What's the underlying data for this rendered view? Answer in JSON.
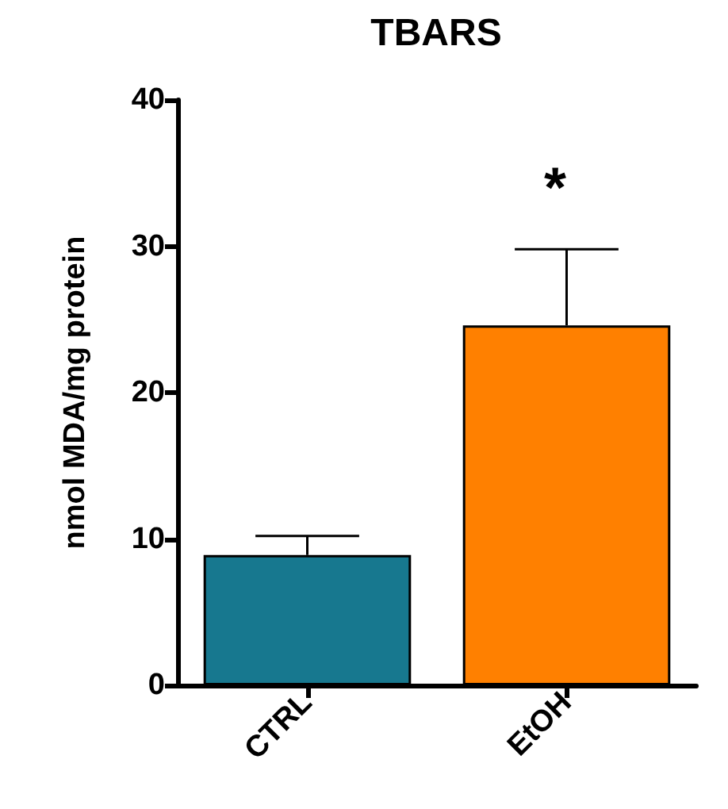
{
  "chart_data": {
    "type": "bar",
    "title": "TBARS",
    "ylabel": "nmol MDA/mg protein",
    "categories": [
      "CTRL",
      "EtOH"
    ],
    "values": [
      8.9,
      24.6
    ],
    "colors": [
      "#17788f",
      "#ff8000"
    ],
    "errors": [
      [
        8.9,
        10.2
      ],
      [
        24.6,
        29.8
      ]
    ],
    "ylim": [
      0,
      40
    ],
    "yticks": [
      0,
      10,
      20,
      30,
      40
    ],
    "grid": false,
    "annotations": [
      "*"
    ]
  }
}
